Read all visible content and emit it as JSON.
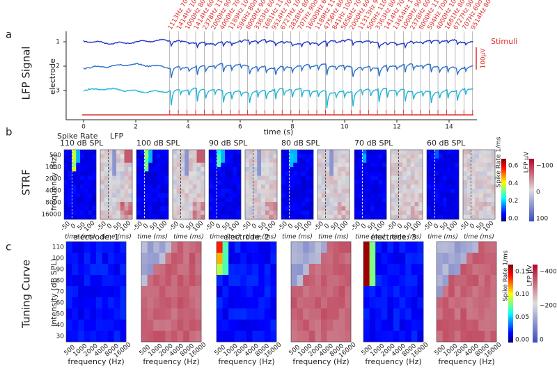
{
  "panel_a": {
    "label": "a",
    "title": "LFP Signal",
    "y_label": "electrode",
    "electrodes": [
      "1",
      "2",
      "3"
    ],
    "x_label": "time (s)",
    "x_ticks": [
      "0",
      "2",
      "4",
      "6",
      "8",
      "10",
      "12",
      "14"
    ],
    "stimuli_label": "Stimuli",
    "scale_bar": "100μV",
    "stimuli": [
      "1113Hz 70dB",
      "1414Hz 100dB",
      "1000Hz 80dB",
      "1414Hz 60dB",
      "2378Hz 110dB",
      "2000Hz 90dB",
      "4000Hz 70dB",
      "1189Hz 100dB",
      "594Hz 80dB",
      "8000Hz 90dB",
      "3363Hz 60dB",
      "1681Hz 110dB",
      "9514Hz 70dB",
      "6727Hz 100dB",
      "2828Hz 80dB",
      "707Hz 90dB",
      "16000Hz 60dB",
      "1189Hz 110dB",
      "4756Hz 80dB",
      "841Hz 100dB",
      "5656Hz 70dB",
      "2000Hz 60dB",
      "11313Hz 90dB",
      "500Hz 110dB",
      "3363Hz 80dB",
      "1414Hz 70dB",
      "13454Hz 100dB",
      "1000Hz 90dB",
      "2378Hz 60dB",
      "8000Hz 110dB",
      "594Hz 70dB",
      "4000Hz 100dB",
      "1681Hz 80dB",
      "6727Hz 90dB",
      "707Hz 60dB",
      "9514Hz 80dB"
    ]
  },
  "panel_b": {
    "label": "b",
    "title": "STRF",
    "y_label": "frequency (Hz)",
    "header_spike": "Spike Rate",
    "header_lfp": "LFP",
    "levels": [
      "110 dB SPL",
      "100 dB SPL",
      "90 dB SPL",
      "80 dB SPL",
      "70 dB SPL",
      "60 dB SPL"
    ],
    "y_ticks": [
      "500",
      "1000",
      "2000",
      "4000",
      "8000",
      "16000"
    ],
    "x_ticks": [
      "-50",
      "0",
      "50",
      "100"
    ],
    "x_label": "time (ms)",
    "colorbar_spike": {
      "label": "Spike Rate 1/ms",
      "ticks": [
        "0.0",
        "0.2",
        "0.4",
        "0.6"
      ]
    },
    "colorbar_lfp": {
      "label": "LFP μV",
      "ticks": [
        "100",
        "0",
        "−100"
      ]
    }
  },
  "panel_c": {
    "label": "c",
    "title": "Tuning Curve",
    "y_label": "intensity (dB SPL)",
    "electrode_titles": [
      "electrode: 1",
      "electrode: 2",
      "electrode: 3"
    ],
    "y_ticks": [
      "110",
      "100",
      "90",
      "80",
      "70",
      "60",
      "50",
      "40",
      "30"
    ],
    "x_ticks": [
      "500",
      "1000",
      "2000",
      "4000",
      "8000",
      "16000"
    ],
    "x_label": "frequency (Hz)",
    "colorbar_spike": {
      "label": "Spike Rate 1/ms",
      "ticks": [
        "0.00",
        "0.05",
        "0.10",
        "0.15"
      ]
    },
    "colorbar_lfp": {
      "label": "LFP μV",
      "ticks": [
        "0",
        "−200",
        "−400"
      ]
    }
  }
}
